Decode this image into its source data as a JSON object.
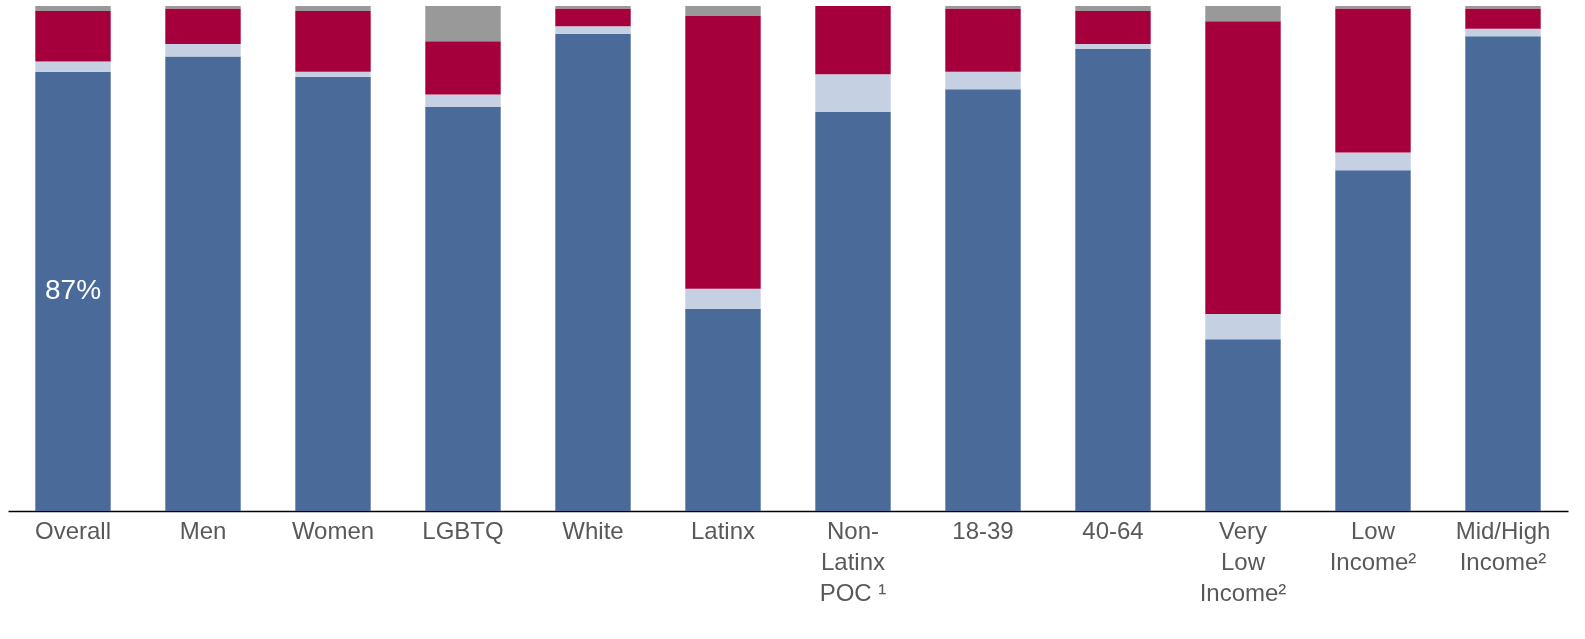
{
  "chart_data": {
    "type": "bar",
    "stacked": true,
    "legend": false,
    "categories": [
      "Overall",
      "Men",
      "Women",
      "LGBTQ",
      "White",
      "Latinx",
      "Non-Latinx POC ¹",
      "18-39",
      "40-64",
      "Very Low Income²",
      "Low Income²",
      "Mid/High Income²"
    ],
    "series": [
      {
        "color": "#4a6b9a",
        "values": [
          87,
          90,
          86,
          80,
          94.5,
          40,
          79,
          83.5,
          91.5,
          34,
          67.5,
          94
        ],
        "value_labels": [
          "87%",
          null,
          null,
          null,
          null,
          null,
          null,
          null,
          null,
          null,
          null,
          null
        ]
      },
      {
        "color": "#c5d0e3",
        "values": [
          2,
          2.5,
          1,
          2.5,
          1.5,
          4,
          7.5,
          3.5,
          1,
          5,
          3.5,
          1.5
        ]
      },
      {
        "color": "#a5003c",
        "values": [
          10,
          7,
          12,
          10.5,
          3.5,
          54,
          13.5,
          12.5,
          6.5,
          58,
          28.5,
          4
        ]
      },
      {
        "color": "#999999",
        "values": [
          1,
          0.5,
          1,
          7,
          0.5,
          2,
          0,
          0.5,
          1,
          3,
          0.5,
          0.5
        ]
      }
    ],
    "ylim": [
      0,
      100
    ]
  }
}
